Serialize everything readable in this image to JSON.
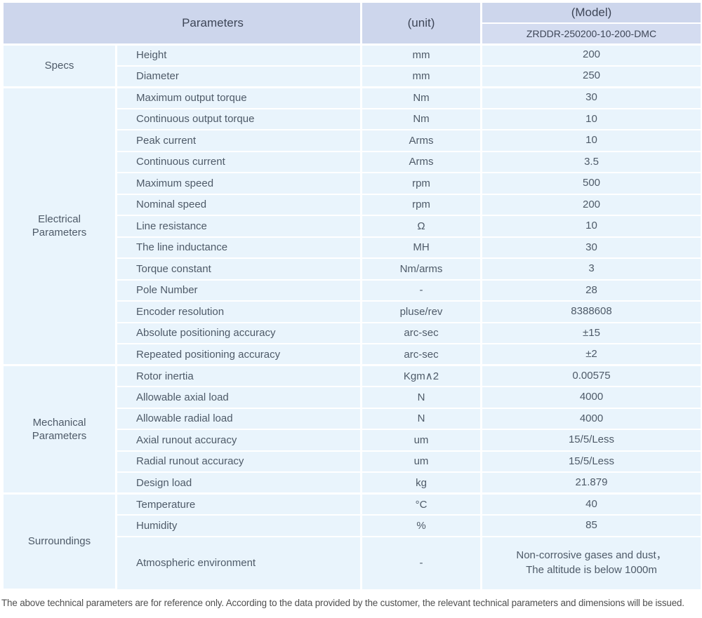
{
  "header": {
    "parameters_label": "Parameters",
    "unit_label": "(unit)",
    "model_label": "(Model)",
    "model_value": "ZRDDR-250200-10-200-DMC"
  },
  "colors": {
    "header_bg": "#cdd6ec",
    "model_row_bg": "#d4dcf0",
    "cell_bg": "#e9f4fc",
    "border": "#ffffff",
    "header_text": "#3e4657",
    "body_text": "#4e5a68",
    "footer_text": "#4f4f4f"
  },
  "groups": [
    {
      "name": "Specs",
      "rows": [
        {
          "param": "Height",
          "unit": "mm",
          "value": "200"
        },
        {
          "param": "Diameter",
          "unit": "mm",
          "value": "250"
        }
      ]
    },
    {
      "name": "Electrical\nParameters",
      "rows": [
        {
          "param": "Maximum output torque",
          "unit": "Nm",
          "value": "30"
        },
        {
          "param": "Continuous output torque",
          "unit": "Nm",
          "value": "10"
        },
        {
          "param": "Peak current",
          "unit": "Arms",
          "value": "10"
        },
        {
          "param": "Continuous current",
          "unit": "Arms",
          "value": "3.5"
        },
        {
          "param": "Maximum speed",
          "unit": "rpm",
          "value": "500"
        },
        {
          "param": "Nominal speed",
          "unit": "rpm",
          "value": "200"
        },
        {
          "param": "Line resistance",
          "unit": "Ω",
          "value": "10"
        },
        {
          "param": "The line inductance",
          "unit": "MH",
          "value": "30"
        },
        {
          "param": "Torque constant",
          "unit": "Nm/arms",
          "value": "3"
        },
        {
          "param": "Pole Number",
          "unit": "-",
          "value": "28"
        },
        {
          "param": "Encoder resolution",
          "unit": "pluse/rev",
          "value": "8388608"
        },
        {
          "param": "Absolute positioning accuracy",
          "unit": "arc-sec",
          "value": "±15"
        },
        {
          "param": "Repeated positioning accuracy",
          "unit": "arc-sec",
          "value": "±2"
        }
      ]
    },
    {
      "name": "Mechanical\nParameters",
      "rows": [
        {
          "param": "Rotor inertia",
          "unit": "Kgm∧2",
          "value": "0.00575"
        },
        {
          "param": "Allowable axial load",
          "unit": "N",
          "value": "4000"
        },
        {
          "param": "Allowable radial load",
          "unit": "N",
          "value": "4000"
        },
        {
          "param": "Axial runout accuracy",
          "unit": "um",
          "value": "15/5/Less"
        },
        {
          "param": "Radial runout accuracy",
          "unit": "um",
          "value": "15/5/Less"
        },
        {
          "param": "Design load",
          "unit": "kg",
          "value": "21.879"
        }
      ]
    },
    {
      "name": "Surroundings",
      "rows": [
        {
          "param": "Temperature",
          "unit": "°C",
          "value": "40"
        },
        {
          "param": "Humidity",
          "unit": "%",
          "value": "85"
        },
        {
          "param": "Atmospheric environment",
          "unit": "-",
          "value": "Non-corrosive gases and dust，\nThe altitude is below 1000m",
          "tall": true
        }
      ]
    }
  ],
  "footer": {
    "note": "The above technical parameters are for reference only. According to the data provided by the customer, the relevant technical parameters and dimensions will be issued."
  }
}
